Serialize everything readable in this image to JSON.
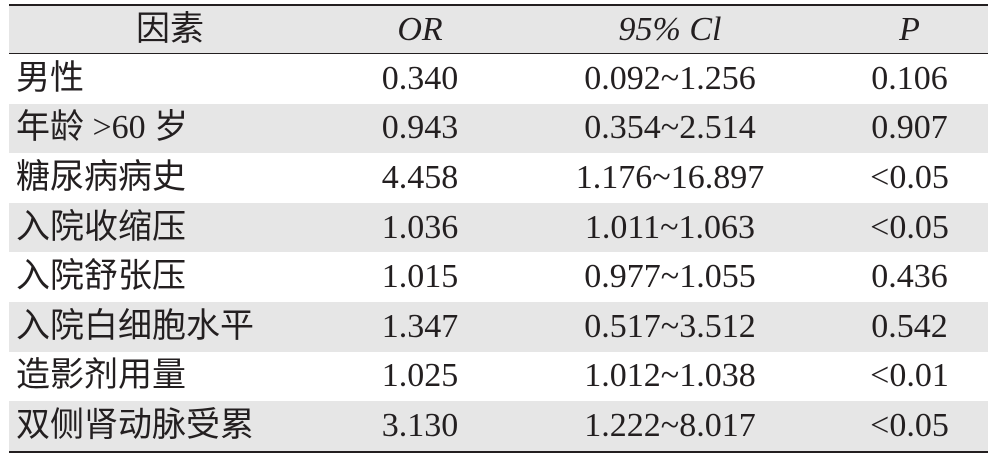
{
  "table": {
    "headers": [
      "因素",
      "OR",
      "95% Cl",
      "P"
    ],
    "rows": [
      {
        "factor": "男性",
        "or": "0.340",
        "ci": "0.092~1.256",
        "p": "0.106"
      },
      {
        "factor": "年龄 >60 岁",
        "or": "0.943",
        "ci": "0.354~2.514",
        "p": "0.907"
      },
      {
        "factor": "糖尿病病史",
        "or": "4.458",
        "ci": "1.176~16.897",
        "p": "<0.05"
      },
      {
        "factor": "入院收缩压",
        "or": "1.036",
        "ci": "1.011~1.063",
        "p": "<0.05"
      },
      {
        "factor": "入院舒张压",
        "or": "1.015",
        "ci": "0.977~1.055",
        "p": "0.436"
      },
      {
        "factor": "入院白细胞水平",
        "or": "1.347",
        "ci": "0.517~3.512",
        "p": "0.542"
      },
      {
        "factor": "造影剂用量",
        "or": "1.025",
        "ci": "1.012~1.038",
        "p": "<0.01"
      },
      {
        "factor": "双侧肾动脉受累",
        "or": "3.130",
        "ci": "1.222~8.017",
        "p": "<0.05"
      }
    ]
  }
}
